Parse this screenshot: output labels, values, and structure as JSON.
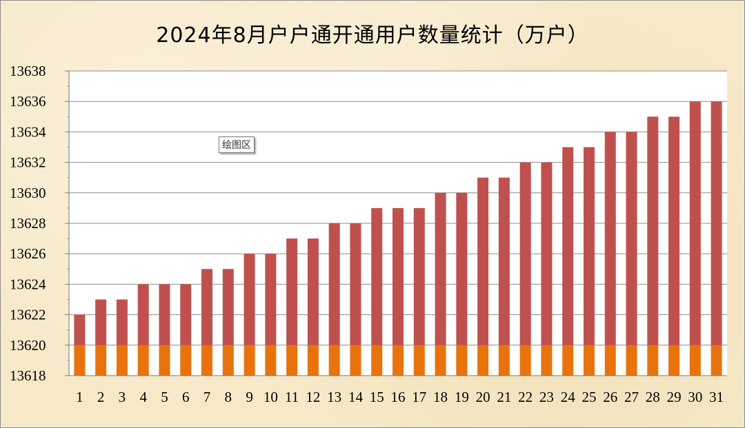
{
  "chart_data": {
    "type": "bar",
    "title": "2024年8月户户通开通用户数量统计（万户）",
    "categories": [
      "1",
      "2",
      "3",
      "4",
      "5",
      "6",
      "7",
      "8",
      "9",
      "10",
      "11",
      "12",
      "13",
      "14",
      "15",
      "16",
      "17",
      "18",
      "19",
      "20",
      "21",
      "22",
      "23",
      "24",
      "25",
      "26",
      "27",
      "28",
      "29",
      "30",
      "31"
    ],
    "series": [
      {
        "values": [
          13620,
          13620,
          13620,
          13620,
          13620,
          13620,
          13620,
          13620,
          13620,
          13620,
          13620,
          13620,
          13620,
          13620,
          13620,
          13620,
          13620,
          13620,
          13620,
          13620,
          13620,
          13620,
          13620,
          13620,
          13620,
          13620,
          13620,
          13620,
          13620,
          13620,
          13620
        ]
      },
      {
        "values": [
          13622,
          13623,
          13623,
          13624,
          13624,
          13624,
          13625,
          13625,
          13626,
          13626,
          13627,
          13627,
          13628,
          13628,
          13629,
          13629,
          13629,
          13630,
          13630,
          13631,
          13631,
          13632,
          13632,
          13633,
          13633,
          13634,
          13634,
          13635,
          13635,
          13636,
          13636
        ]
      }
    ],
    "ylim": [
      13618,
      13638
    ],
    "yticks": [
      13618,
      13620,
      13622,
      13624,
      13626,
      13628,
      13630,
      13632,
      13634,
      13636,
      13638
    ],
    "grid": true,
    "colors": {
      "base": "#e8730d",
      "total": "#c0504d",
      "plot_bg": "#ffffff",
      "grid": "#8c8c8c"
    }
  },
  "ui": {
    "plot_area_tooltip": "绘图区"
  }
}
